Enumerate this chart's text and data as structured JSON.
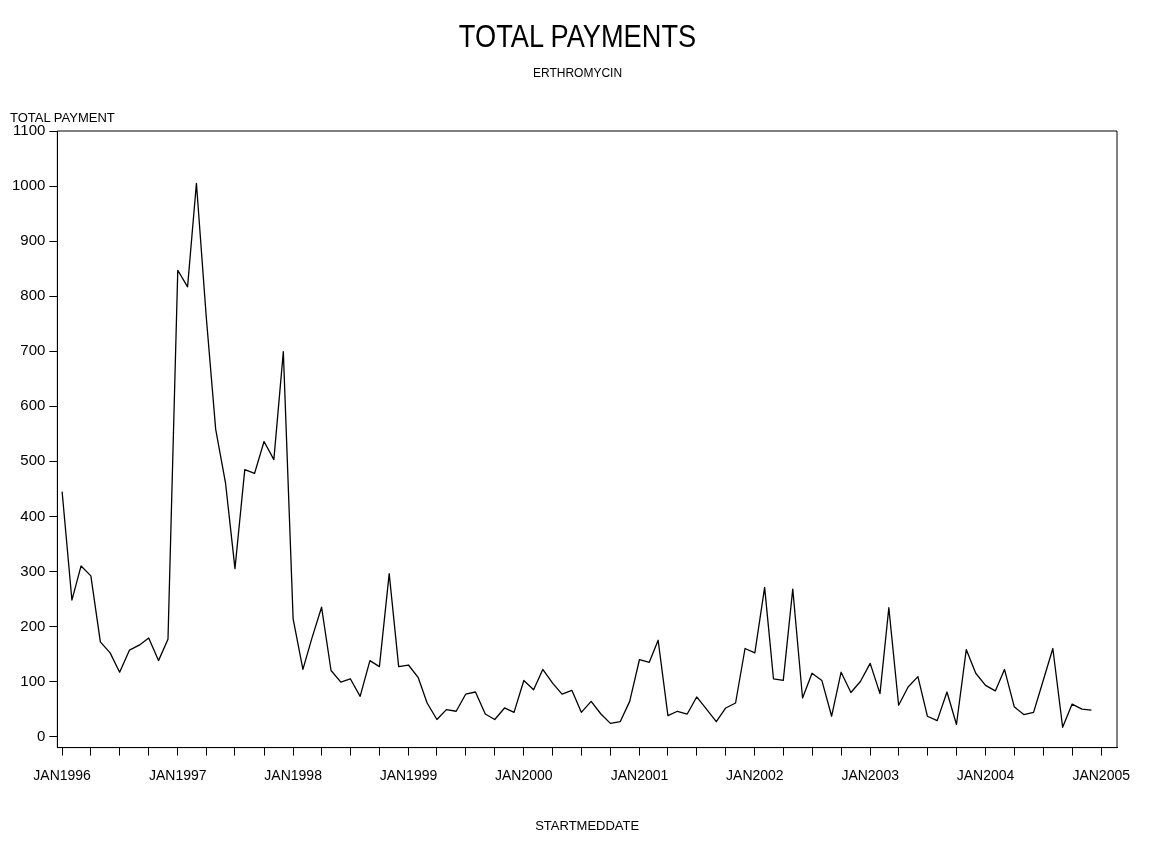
{
  "chart_data": {
    "type": "line",
    "title": "TOTAL PAYMENTS",
    "subtitle": "ERTHROMYCIN",
    "xlabel": "STARTMEDDATE",
    "ylabel": "TOTAL PAYMENT",
    "x": [
      "1996-01",
      "1996-02",
      "1996-03",
      "1996-04",
      "1996-05",
      "1996-06",
      "1996-07",
      "1996-08",
      "1996-09",
      "1996-10",
      "1996-11",
      "1996-12",
      "1997-01",
      "1997-02",
      "1997-03",
      "1997-04",
      "1997-05",
      "1997-06",
      "1997-07",
      "1997-08",
      "1997-09",
      "1997-10",
      "1997-11",
      "1997-12",
      "1998-01",
      "1998-02",
      "1998-03",
      "1998-04",
      "1998-05",
      "1998-06",
      "1998-07",
      "1998-08",
      "1998-09",
      "1998-10",
      "1998-11",
      "1998-12",
      "1999-01",
      "1999-02",
      "1999-03",
      "1999-04",
      "1999-05",
      "1999-06",
      "1999-07",
      "1999-08",
      "1999-09",
      "1999-10",
      "1999-11",
      "1999-12",
      "2000-01",
      "2000-02",
      "2000-03",
      "2000-04",
      "2000-05",
      "2000-06",
      "2000-07",
      "2000-08",
      "2000-09",
      "2000-10",
      "2000-11",
      "2000-12",
      "2001-01",
      "2001-02",
      "2001-03",
      "2001-04",
      "2001-05",
      "2001-06",
      "2001-07",
      "2001-08",
      "2001-09",
      "2001-10",
      "2001-11",
      "2001-12",
      "2002-01",
      "2002-02",
      "2002-03",
      "2002-04",
      "2002-05",
      "2002-06",
      "2002-07",
      "2002-08",
      "2002-09",
      "2002-10",
      "2002-11",
      "2002-12",
      "2003-01",
      "2003-02",
      "2003-03",
      "2003-04",
      "2003-05",
      "2003-06",
      "2003-07",
      "2003-08",
      "2003-09",
      "2003-10",
      "2003-11",
      "2003-12",
      "2004-01",
      "2004-02",
      "2004-03",
      "2004-04",
      "2004-05",
      "2004-06",
      "2004-07",
      "2004-08",
      "2004-09",
      "2004-10",
      "2004-11",
      "2004-12"
    ],
    "series": [
      {
        "color": "#000000",
        "values": [
          445,
          248,
          310,
          292,
          172,
          152,
          117,
          157,
          166,
          179,
          138,
          177,
          847,
          817,
          1005,
          763,
          558,
          461,
          305,
          485,
          478,
          536,
          503,
          699,
          214,
          122,
          178,
          235,
          120,
          99,
          105,
          73,
          138,
          127,
          296,
          127,
          130,
          107,
          61,
          31,
          49,
          46,
          77,
          81,
          41,
          31,
          52,
          44,
          102,
          85,
          122,
          97,
          77,
          84,
          44,
          64,
          41,
          24,
          27,
          64,
          140,
          135,
          175,
          38,
          46,
          41,
          72,
          50,
          27,
          52,
          61,
          160,
          152,
          271,
          105,
          102,
          268,
          70,
          115,
          102,
          37,
          117,
          80,
          100,
          133,
          78,
          234,
          57,
          90,
          109,
          37,
          29,
          81,
          22,
          158,
          115,
          93,
          83,
          122,
          54,
          40,
          44,
          101,
          160,
          17,
          59,
          50,
          48
        ]
      }
    ],
    "xlim": [
      "1995-12-17",
      "2005-02-20"
    ],
    "xticks": [
      {
        "value": "1996-01",
        "label": "JAN1996"
      },
      {
        "value": "1996-04",
        "label": null
      },
      {
        "value": "1996-07",
        "label": null
      },
      {
        "value": "1996-10",
        "label": null
      },
      {
        "value": "1997-01",
        "label": "JAN1997"
      },
      {
        "value": "1997-04",
        "label": null
      },
      {
        "value": "1997-07",
        "label": null
      },
      {
        "value": "1997-10",
        "label": null
      },
      {
        "value": "1998-01",
        "label": "JAN1998"
      },
      {
        "value": "1998-04",
        "label": null
      },
      {
        "value": "1998-07",
        "label": null
      },
      {
        "value": "1998-10",
        "label": null
      },
      {
        "value": "1999-01",
        "label": "JAN1999"
      },
      {
        "value": "1999-04",
        "label": null
      },
      {
        "value": "1999-07",
        "label": null
      },
      {
        "value": "1999-10",
        "label": null
      },
      {
        "value": "2000-01",
        "label": "JAN2000"
      },
      {
        "value": "2000-04",
        "label": null
      },
      {
        "value": "2000-07",
        "label": null
      },
      {
        "value": "2000-10",
        "label": null
      },
      {
        "value": "2001-01",
        "label": "JAN2001"
      },
      {
        "value": "2001-04",
        "label": null
      },
      {
        "value": "2001-07",
        "label": null
      },
      {
        "value": "2001-10",
        "label": null
      },
      {
        "value": "2002-01",
        "label": "JAN2002"
      },
      {
        "value": "2002-04",
        "label": null
      },
      {
        "value": "2002-07",
        "label": null
      },
      {
        "value": "2002-10",
        "label": null
      },
      {
        "value": "2003-01",
        "label": "JAN2003"
      },
      {
        "value": "2003-04",
        "label": null
      },
      {
        "value": "2003-07",
        "label": null
      },
      {
        "value": "2003-10",
        "label": null
      },
      {
        "value": "2004-01",
        "label": "JAN2004"
      },
      {
        "value": "2004-04",
        "label": null
      },
      {
        "value": "2004-07",
        "label": null
      },
      {
        "value": "2004-10",
        "label": null
      },
      {
        "value": "2005-01",
        "label": "JAN2005"
      }
    ],
    "ylim": [
      -20,
      1100
    ],
    "yticks": [
      0,
      100,
      200,
      300,
      400,
      500,
      600,
      700,
      800,
      900,
      1000,
      1100
    ],
    "grid": false,
    "legend": false,
    "marker": "none",
    "line_style": "solid"
  }
}
